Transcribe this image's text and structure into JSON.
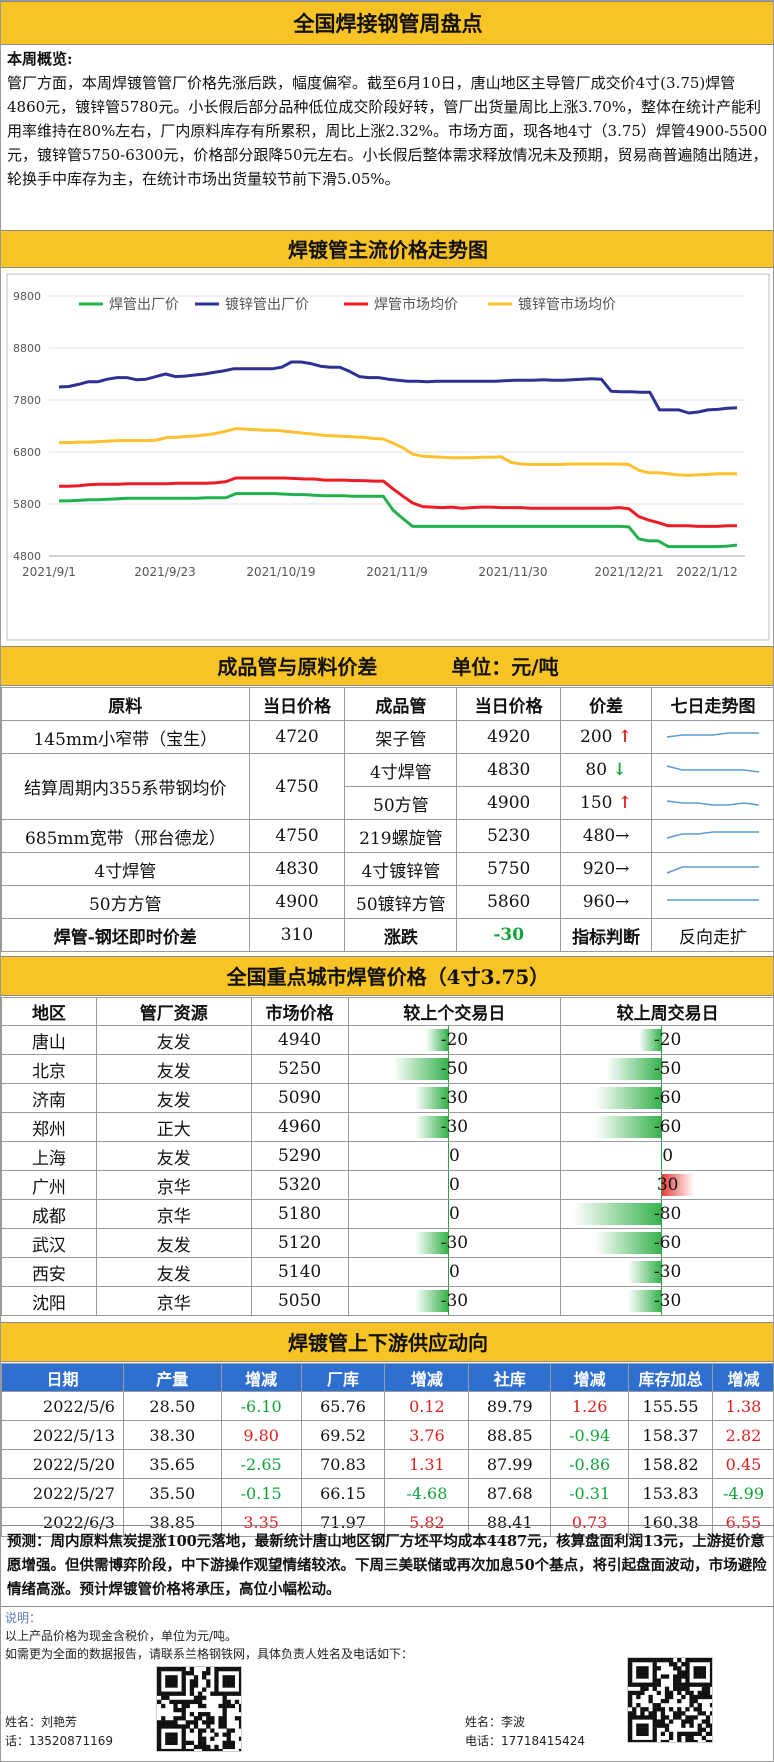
{
  "header": {
    "title": "全国焊接钢管周盘点"
  },
  "overview": {
    "label": "本周概览:",
    "paragraph": "管厂方面，本周焊镀管管厂价格先涨后跌，幅度偏窄。截至6月10日，唐山地区主导管厂成交价4寸(3.75)焊管4860元，镀锌管5780元。小长假后部分品种低位成交阶段好转，管厂出货量周比上涨3.70%，整体在统计产能利用率维持在80%左右，厂内原料库存有所累积，周比上涨2.32%。市场方面，现各地4寸（3.75）焊管4900-5500元，镀锌管5750-6300元，价格部分跟降50元左右。小长假后整体需求释放情况未及预期，贸易商普遍随出随进，轮换手中库存为主，在统计市场出货量较节前下滑5.05%。"
  },
  "trend": {
    "title": "焊镀管主流价格走势图",
    "chart_data": {
      "type": "line",
      "title": "",
      "xlabel": "",
      "ylabel": "",
      "ylim": [
        4800,
        9800
      ],
      "yticks": [
        4800,
        5800,
        6800,
        7800,
        8800,
        9800
      ],
      "xticks": [
        "2021/9/1",
        "2021/9/23",
        "2021/10/19",
        "2021/11/9",
        "2021/11/30",
        "2021/12/21",
        "2022/1/12"
      ],
      "legend_position": "top",
      "grid": true,
      "series": [
        {
          "name": "焊管出厂价",
          "color": "#22b14c",
          "values": [
            5860,
            5860,
            5870,
            5880,
            5880,
            5890,
            5900,
            5910,
            5910,
            5910,
            5910,
            5910,
            5910,
            5910,
            5910,
            5920,
            5920,
            5920,
            6000,
            6000,
            6000,
            6000,
            6000,
            5990,
            5980,
            5980,
            5970,
            5960,
            5960,
            5960,
            5950,
            5950,
            5950,
            5950,
            5680,
            5520,
            5370,
            5370,
            5370,
            5370,
            5370,
            5370,
            5370,
            5370,
            5370,
            5370,
            5370,
            5370,
            5370,
            5370,
            5370,
            5370,
            5370,
            5370,
            5370,
            5370,
            5370,
            5370,
            5360,
            5130,
            5090,
            5090,
            4980,
            4980,
            4980,
            4980,
            4980,
            4980,
            4990,
            5010
          ]
        },
        {
          "name": "镀锌管出厂价",
          "color": "#2e3192",
          "values": [
            8050,
            8060,
            8100,
            8150,
            8150,
            8200,
            8230,
            8230,
            8190,
            8200,
            8250,
            8300,
            8250,
            8260,
            8280,
            8300,
            8330,
            8360,
            8400,
            8400,
            8400,
            8400,
            8400,
            8430,
            8530,
            8530,
            8500,
            8450,
            8430,
            8430,
            8350,
            8250,
            8230,
            8230,
            8200,
            8180,
            8160,
            8160,
            8150,
            8160,
            8160,
            8160,
            8160,
            8160,
            8160,
            8160,
            8170,
            8180,
            8180,
            8180,
            8190,
            8180,
            8180,
            8190,
            8200,
            8210,
            8200,
            7970,
            7960,
            7960,
            7950,
            7950,
            7610,
            7610,
            7610,
            7550,
            7570,
            7610,
            7620,
            7640,
            7650
          ]
        },
        {
          "name": "焊管市场均价",
          "color": "#ed1c24",
          "values": [
            6140,
            6140,
            6150,
            6170,
            6180,
            6180,
            6180,
            6190,
            6190,
            6190,
            6190,
            6190,
            6200,
            6200,
            6200,
            6200,
            6210,
            6230,
            6300,
            6300,
            6300,
            6300,
            6300,
            6300,
            6290,
            6280,
            6280,
            6260,
            6260,
            6260,
            6250,
            6250,
            6240,
            6240,
            6090,
            5950,
            5820,
            5750,
            5740,
            5730,
            5740,
            5720,
            5730,
            5740,
            5740,
            5730,
            5730,
            5730,
            5720,
            5720,
            5720,
            5720,
            5720,
            5720,
            5720,
            5720,
            5720,
            5730,
            5710,
            5560,
            5490,
            5440,
            5380,
            5380,
            5380,
            5370,
            5370,
            5370,
            5380,
            5380
          ]
        },
        {
          "name": "镀锌管市场均价",
          "color": "#fdc02f",
          "values": [
            6980,
            6980,
            6990,
            6990,
            7000,
            7010,
            7020,
            7020,
            7020,
            7020,
            7030,
            7080,
            7080,
            7100,
            7110,
            7130,
            7160,
            7200,
            7250,
            7240,
            7230,
            7220,
            7220,
            7200,
            7180,
            7160,
            7140,
            7120,
            7110,
            7100,
            7090,
            7080,
            7060,
            7050,
            6970,
            6880,
            6760,
            6720,
            6710,
            6700,
            6690,
            6690,
            6690,
            6700,
            6700,
            6710,
            6600,
            6570,
            6560,
            6560,
            6560,
            6560,
            6570,
            6570,
            6570,
            6570,
            6570,
            6570,
            6560,
            6450,
            6400,
            6400,
            6380,
            6360,
            6350,
            6360,
            6370,
            6380,
            6380,
            6380
          ]
        }
      ]
    }
  },
  "spread": {
    "title": "成品管与原料价差",
    "unit": "单位：元/吨",
    "headers": {
      "material": "原料",
      "mat_price": "当日价格",
      "product": "成品管",
      "prod_price": "当日价格",
      "diff": "价差",
      "trend": "七日走势图"
    },
    "rows": [
      {
        "material": "145mm小窄带（宝生）",
        "mat_price": "4720",
        "product": "架子管",
        "prod_price": "4920",
        "diff": "200",
        "arrow": "↑",
        "dir": "up"
      },
      {
        "material": "结算周期内355系带钢均价",
        "mat_price": "4750",
        "product": "4寸焊管",
        "prod_price": "4830",
        "diff": "80",
        "arrow": "↓",
        "dir": "down"
      },
      {
        "material": "",
        "mat_price": "",
        "product": "50方管",
        "prod_price": "4900",
        "diff": "150",
        "arrow": "↑",
        "dir": "up"
      },
      {
        "material": "685mm宽带（邢台德龙）",
        "mat_price": "4750",
        "product": "219螺旋管",
        "prod_price": "5230",
        "diff": "480",
        "arrow": "→",
        "dir": "flat"
      },
      {
        "material": "4寸焊管",
        "mat_price": "4830",
        "product": "4寸镀锌管",
        "prod_price": "5750",
        "diff": "920",
        "arrow": "→",
        "dir": "flat"
      },
      {
        "material": "50方方管",
        "mat_price": "4900",
        "product": "50镀锌方管",
        "prod_price": "5860",
        "diff": "960",
        "arrow": "→",
        "dir": "flat"
      }
    ],
    "footer": {
      "label": "焊管-钢坯即时价差",
      "value": "310",
      "change_label": "涨跌",
      "change": "-30",
      "indicator_label": "指标判断",
      "indicator": "反向走扩"
    },
    "sparklines": [
      [
        4,
        3,
        3,
        3,
        2,
        2,
        2
      ],
      [
        2,
        4,
        4,
        4,
        4,
        4,
        5
      ],
      [
        3,
        4,
        4,
        5,
        5,
        4,
        5
      ],
      [
        5,
        3,
        3,
        2,
        2,
        2,
        2
      ],
      [
        6,
        3,
        3,
        3,
        3,
        3,
        3
      ],
      [
        3,
        3,
        3,
        3,
        3,
        3,
        3
      ]
    ]
  },
  "cities": {
    "title": "全国重点城市焊管价格（4寸3.75）",
    "headers": {
      "region": "地区",
      "source": "管厂资源",
      "price": "市场价格",
      "vs_day": "较上个交易日",
      "vs_week": "较上周交易日"
    },
    "rows": [
      {
        "region": "唐山",
        "source": "友发",
        "price": "4940",
        "d": -20,
        "w": -20
      },
      {
        "region": "北京",
        "source": "友发",
        "price": "5250",
        "d": -50,
        "w": -50
      },
      {
        "region": "济南",
        "source": "友发",
        "price": "5090",
        "d": -30,
        "w": -60
      },
      {
        "region": "郑州",
        "source": "正大",
        "price": "4960",
        "d": -30,
        "w": -60
      },
      {
        "region": "上海",
        "source": "友发",
        "price": "5290",
        "d": 0,
        "w": 0
      },
      {
        "region": "广州",
        "source": "京华",
        "price": "5320",
        "d": 0,
        "w": 30
      },
      {
        "region": "成都",
        "source": "京华",
        "price": "5180",
        "d": 0,
        "w": -80
      },
      {
        "region": "武汉",
        "source": "友发",
        "price": "5120",
        "d": -30,
        "w": -60
      },
      {
        "region": "西安",
        "source": "友发",
        "price": "5140",
        "d": 0,
        "w": -30
      },
      {
        "region": "沈阳",
        "source": "京华",
        "price": "5050",
        "d": -30,
        "w": -30
      }
    ]
  },
  "supply": {
    "title": "焊镀管上下游供应动向",
    "headers": [
      "日期",
      "产量",
      "增减",
      "厂库",
      "增减",
      "社库",
      "增减",
      "库存加总",
      "增减"
    ],
    "rows": [
      [
        "2022/5/6",
        "28.50",
        "-6.10",
        "65.76",
        "0.12",
        "89.79",
        "1.26",
        "155.55",
        "1.38"
      ],
      [
        "2022/5/13",
        "38.30",
        "9.80",
        "69.52",
        "3.76",
        "88.85",
        "-0.94",
        "158.37",
        "2.82"
      ],
      [
        "2022/5/20",
        "35.65",
        "-2.65",
        "70.83",
        "1.31",
        "87.99",
        "-0.86",
        "158.82",
        "0.45"
      ],
      [
        "2022/5/27",
        "35.50",
        "-0.15",
        "66.15",
        "-4.68",
        "87.68",
        "-0.31",
        "153.83",
        "-4.99"
      ],
      [
        "2022/6/3",
        "38.85",
        "3.35",
        "71.97",
        "5.82",
        "88.41",
        "0.73",
        "160.38",
        "6.55"
      ]
    ]
  },
  "forecast": {
    "text": "预测：周内原料焦炭提涨100元落地，最新统计唐山地区钢厂方坯平均成本4487元，核算盘面利润13元，上游挺价意愿增强。但供需博弈阶段，中下游操作观望情绪较浓。下周三美联储或再次加息50个基点，将引起盘面波动，市场避险情绪高涨。预计焊镀管价格将承压，高位小幅松动。"
  },
  "notes": {
    "label": "说明：",
    "line1": "以上产品价格为现金含税价，单位为元/吨。",
    "line2": "如需更为全面的数据报告，请联系兰格钢铁网，具体负责人姓名及电话如下："
  },
  "contacts": [
    {
      "name": "姓名：刘艳芳",
      "phone": "话：13520871169"
    },
    {
      "name": "姓名：李波",
      "phone": "电话：17718415424"
    }
  ],
  "colors": {
    "band": "#f8c324",
    "supply_header": "#2f6fcf",
    "green": "#11a33a",
    "red": "#e02020",
    "spark": "#5b9bd5"
  }
}
